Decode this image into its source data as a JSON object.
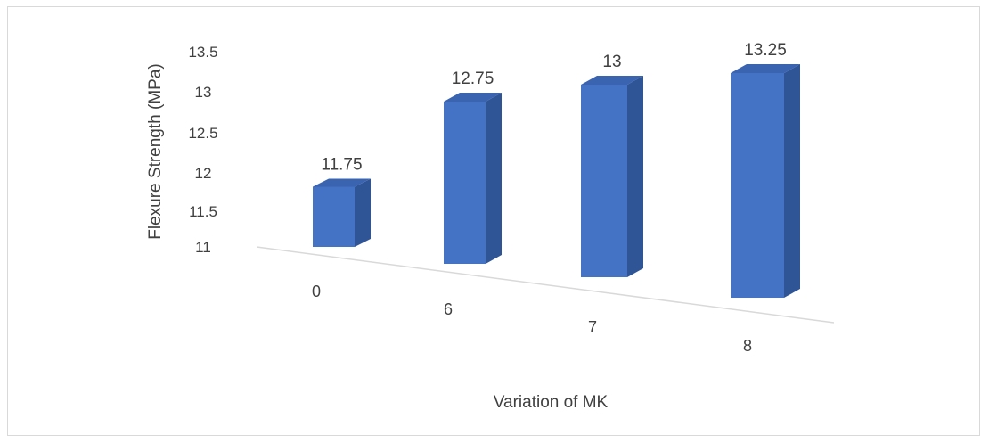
{
  "chart_data": {
    "type": "bar",
    "categories": [
      "0",
      "6",
      "7",
      "8"
    ],
    "values": [
      11.75,
      12.75,
      13,
      13.25
    ],
    "data_labels": [
      "11.75",
      "12.75",
      "13",
      "13.25"
    ],
    "title": "",
    "xlabel": "Variation of MK",
    "ylabel": "Flexure Strength (MPa)",
    "ylim": [
      11,
      13.5
    ],
    "yticks": [
      "11",
      "11.5",
      "12",
      "12.5",
      "13",
      "13.5"
    ],
    "bar_color": "#4472C4",
    "bar_side_color": "#2F5597",
    "bar_top_color": "#3A63B0",
    "grid": false,
    "legend": "none",
    "style": "3d-column"
  }
}
